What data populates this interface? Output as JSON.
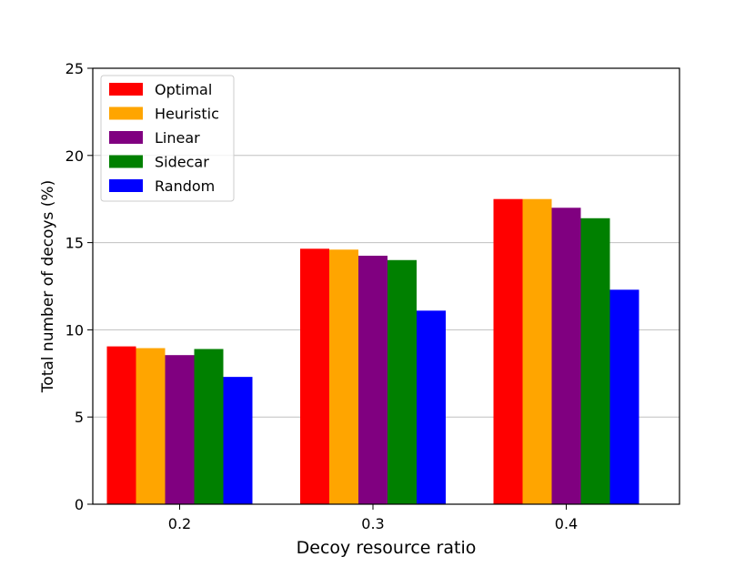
{
  "chart_data": {
    "type": "bar",
    "title": "",
    "xlabel": "Decoy resource ratio",
    "ylabel": "Total number of decoys (%)",
    "categories": [
      "0.2",
      "0.3",
      "0.4"
    ],
    "ylim": [
      0,
      25
    ],
    "yticks": [
      "0",
      "5",
      "10",
      "15",
      "20",
      "25"
    ],
    "grid": "horizontal",
    "legend_position": "top-left",
    "series": [
      {
        "name": "Optimal",
        "color": "#ff0000",
        "values": [
          9.05,
          14.65,
          17.5
        ]
      },
      {
        "name": "Heuristic",
        "color": "#ffa500",
        "values": [
          8.95,
          14.6,
          17.5
        ]
      },
      {
        "name": "Linear",
        "color": "#800080",
        "values": [
          8.55,
          14.25,
          17.0
        ]
      },
      {
        "name": "Sidecar",
        "color": "#008000",
        "values": [
          8.9,
          14.0,
          16.4
        ]
      },
      {
        "name": "Random",
        "color": "#0000ff",
        "values": [
          7.3,
          11.1,
          12.3
        ]
      }
    ]
  }
}
